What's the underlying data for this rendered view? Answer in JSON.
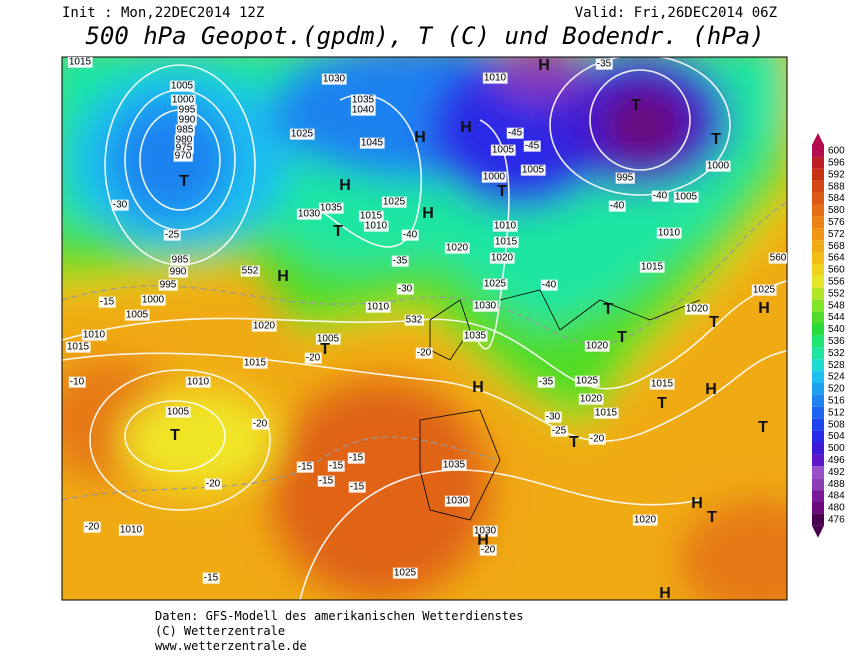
{
  "header": {
    "init": "Init : Mon,22DEC2014 12Z",
    "valid": "Valid: Fri,26DEC2014 06Z",
    "title": "500 hPa Geopot.(gpdm), T (C) und Bodendr. (hPa)"
  },
  "colorbar": {
    "ticks": [
      600,
      596,
      592,
      588,
      584,
      580,
      576,
      572,
      568,
      564,
      560,
      556,
      552,
      548,
      544,
      540,
      536,
      532,
      528,
      524,
      520,
      516,
      512,
      508,
      504,
      500,
      496,
      492,
      488,
      484,
      480,
      476
    ]
  },
  "map": {
    "labels": [
      "1015",
      "1005",
      "1000",
      "995",
      "990",
      "985",
      "980",
      "975",
      "970",
      "T",
      "-30",
      "-25",
      "985",
      "990",
      "995",
      "1000",
      "1005",
      "-15",
      "1010",
      "1015",
      "-10",
      "1020",
      "1015",
      "1010",
      "1005",
      "T",
      "-20",
      "-20",
      "-20",
      "1010",
      "-15",
      "1030",
      "1035",
      "1040",
      "1025",
      "1045",
      "H",
      "1035",
      "1030",
      "1015",
      "1010",
      "1025",
      "T",
      "H",
      "H",
      "-40",
      "-35",
      "552",
      "H",
      "1010",
      "-30",
      "532",
      "1005",
      "T",
      "-20",
      "1020",
      "1010",
      "1015",
      "1020",
      "1025",
      "1030",
      "1035",
      "-20",
      "H",
      "H",
      "1010",
      "H",
      "-35",
      "T",
      "T",
      "1005",
      "-45",
      "-45",
      "1000",
      "1005",
      "T",
      "995",
      "1000",
      "-40",
      "1005",
      "-40",
      "1010",
      "1015",
      "-40",
      "T",
      "T",
      "1020",
      "-35",
      "1025",
      "1020",
      "1015",
      "-30",
      "-25",
      "-20",
      "T",
      "1015",
      "T",
      "H",
      "T",
      "1025",
      "1020",
      "T",
      "H",
      "1035",
      "1030",
      "1030",
      "H",
      "-20",
      "1020",
      "H",
      "T",
      "1025",
      "-15",
      "-15",
      "-15",
      "-15",
      "-15",
      "H",
      "560"
    ]
  },
  "footer": {
    "line1": "Daten: GFS-Modell des amerikanischen Wetterdienstes",
    "line2": "(C) Wetterzentrale",
    "line3": "www.wetterzentrale.de"
  }
}
